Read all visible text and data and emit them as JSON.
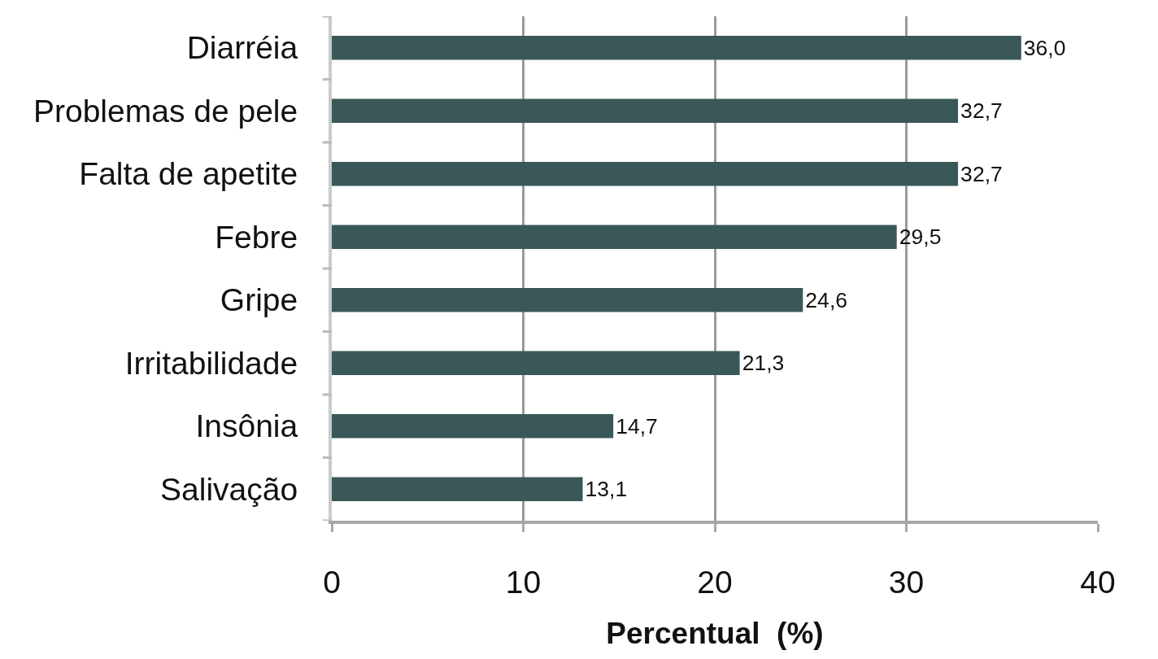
{
  "chart_data": {
    "type": "bar",
    "orientation": "horizontal",
    "xlabel": "Percentual  (%)",
    "categories": [
      "Diarréia",
      "Problemas de pele",
      "Falta de apetite",
      "Febre",
      "Gripe",
      "Irritabilidade",
      "Insônia",
      "Salivação"
    ],
    "values": [
      36.0,
      32.7,
      32.7,
      29.5,
      24.6,
      21.3,
      14.7,
      13.1
    ],
    "value_labels": [
      "36,0",
      "32,7",
      "32,7",
      "29,5",
      "24,6",
      "21,3",
      "14,7",
      "13,1"
    ],
    "color": "#3a5858",
    "xlim": [
      0,
      40
    ],
    "xticks": [
      0,
      10,
      20,
      30,
      40
    ],
    "grid": "x"
  }
}
